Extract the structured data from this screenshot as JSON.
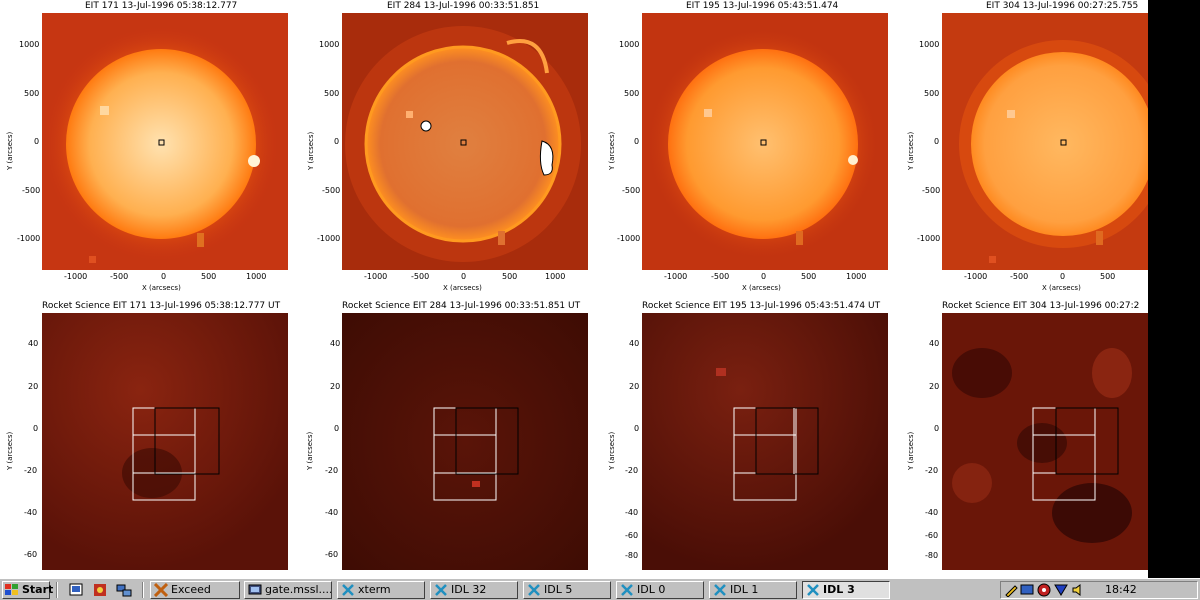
{
  "panels_top": [
    {
      "title": "EIT 171 13-Jul-1996 05:38:12.777",
      "ylabel": "Y (arcsecs)",
      "xlabel": "X (arcsecs)",
      "style": "171"
    },
    {
      "title": "EIT 284 13-Jul-1996 00:33:51.851",
      "ylabel": "Y (arcsecs)",
      "xlabel": "X (arcsecs)",
      "style": "284"
    },
    {
      "title": "EIT 195 13-Jul-1996 05:43:51.474",
      "ylabel": "Y (arcsecs)",
      "xlabel": "X (arcsecs)",
      "style": "195"
    },
    {
      "title": "EIT 304 13-Jul-1996 00:27:25.755",
      "ylabel": "Y (arcsecs)",
      "xlabel": "X (arcsecs)",
      "style": "304"
    }
  ],
  "top_yticks": [
    "1000",
    "500",
    "0",
    "-500",
    "-1000"
  ],
  "top_xticks": [
    "-1000",
    "-500",
    "0",
    "500",
    "1000"
  ],
  "panels_bottom": [
    {
      "title": "Rocket Science EIT 171 13-Jul-1996 05:38:12.777 UT",
      "ylabel": "Y (arcsecs)",
      "yticks": [
        "40",
        "20",
        "0",
        "-20",
        "-40",
        "-60"
      ]
    },
    {
      "title": "Rocket Science EIT 284 13-Jul-1996 00:33:51.851 UT",
      "ylabel": "Y (arcsecs)",
      "yticks": [
        "40",
        "20",
        "0",
        "-20",
        "-40",
        "-60"
      ]
    },
    {
      "title": "Rocket Science EIT 195 13-Jul-1996 05:43:51.474 UT",
      "ylabel": "Y (arcsecs)",
      "yticks": [
        "40",
        "20",
        "0",
        "-20",
        "-40",
        "-60",
        "-80"
      ]
    },
    {
      "title": "Rocket Science EIT 304 13-Jul-1996 00:27:2",
      "ylabel": "Y (arcsecs)",
      "yticks": [
        "40",
        "20",
        "0",
        "-20",
        "-40",
        "-60",
        "-80"
      ]
    }
  ],
  "taskbar": {
    "start_label": "Start",
    "buttons": [
      {
        "label": "Exceed",
        "icon": "exceed-icon"
      },
      {
        "label": "gate.mssl....",
        "icon": "terminal-icon"
      },
      {
        "label": "xterm",
        "icon": "x-icon"
      },
      {
        "label": "IDL 32",
        "icon": "x-icon"
      },
      {
        "label": "IDL 5",
        "icon": "x-icon"
      },
      {
        "label": "IDL 0",
        "icon": "x-icon"
      },
      {
        "label": "IDL 1",
        "icon": "x-icon"
      },
      {
        "label": "IDL 3",
        "icon": "x-icon",
        "active": true
      }
    ],
    "clock": "18:42"
  },
  "colors": {
    "disk_core": "#ffe6b0",
    "disk_edge": "#ff8a10",
    "bg": "#c83a10",
    "zoom_bg": "#6a1608"
  }
}
